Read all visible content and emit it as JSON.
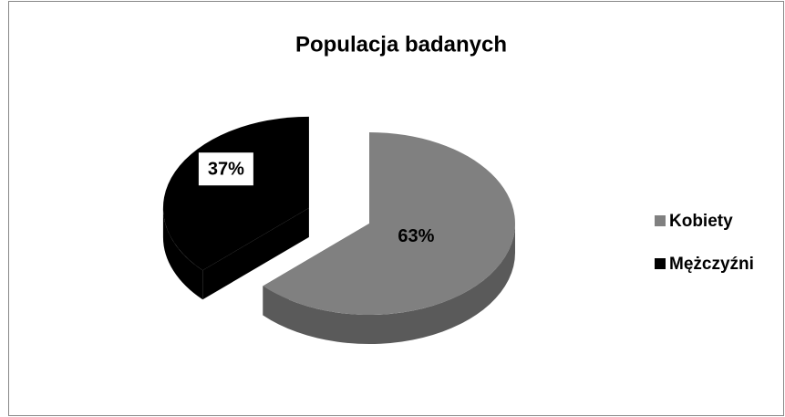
{
  "chart_data": {
    "type": "pie",
    "title": "Populacja badanych",
    "categories": [
      "Kobiety",
      "Mężczyźni"
    ],
    "values": [
      63,
      37
    ],
    "value_labels": [
      "63%",
      "37%"
    ],
    "colors": [
      "#808080",
      "#000000"
    ],
    "legend": "right"
  }
}
